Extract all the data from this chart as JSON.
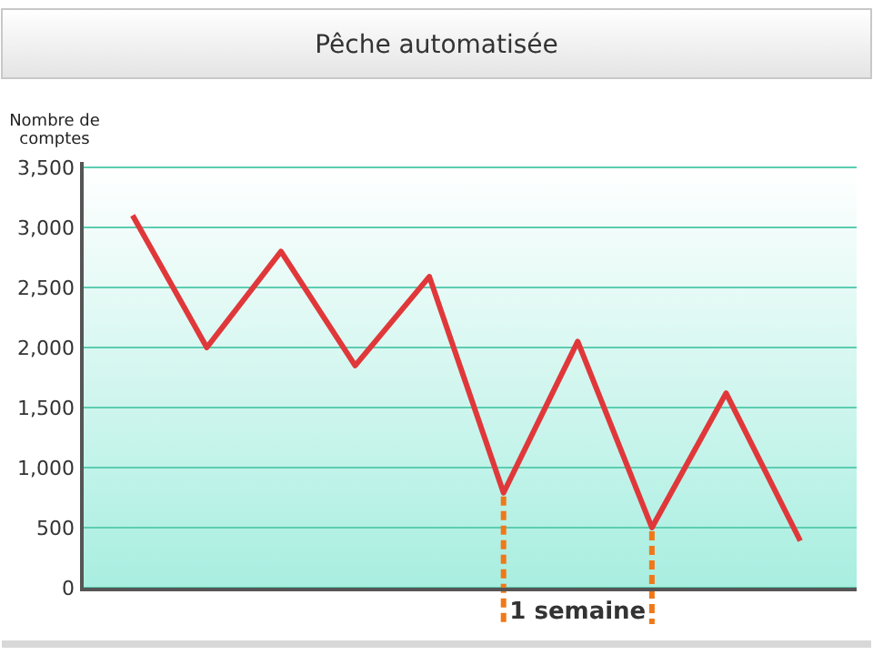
{
  "chart_data": {
    "type": "line",
    "title": "Pêche automatisée",
    "ylabel": "Nombre de comptes",
    "categories": [
      null,
      null,
      null,
      null,
      null,
      null,
      null,
      null,
      null,
      null
    ],
    "series": [
      {
        "color": "#e0383a",
        "values": [
          3100,
          2000,
          2800,
          1850,
          2590,
          790,
          2050,
          500,
          1620,
          390
        ]
      }
    ],
    "ylim": [
      0,
      3500
    ],
    "yticks": [
      {
        "value": 0,
        "label": "0"
      },
      {
        "value": 500,
        "label": "500"
      },
      {
        "value": 1000,
        "label": "1,000"
      },
      {
        "value": 1500,
        "label": "1,500"
      },
      {
        "value": 2000,
        "label": "2,000"
      },
      {
        "value": 2500,
        "label": "2,500"
      },
      {
        "value": 3000,
        "label": "3,000"
      },
      {
        "value": 3500,
        "label": "3,500"
      }
    ],
    "grid": "y",
    "tick_labels": "y",
    "marker": "none",
    "line_style": "solid",
    "annotations": [
      "1 semaine"
    ]
  }
}
